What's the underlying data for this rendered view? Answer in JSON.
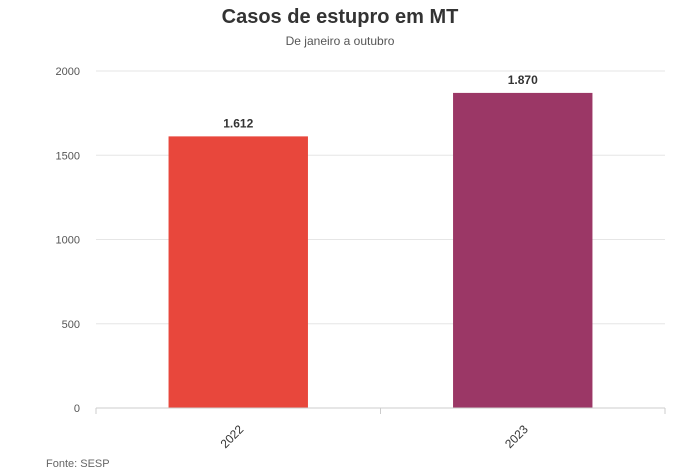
{
  "chart_data": {
    "type": "bar",
    "title": "Casos de estupro em MT",
    "subtitle": "De janeiro a outubro",
    "categories": [
      "2022",
      "2023"
    ],
    "values": [
      1612,
      1870
    ],
    "value_labels": [
      "1.612",
      "1.870"
    ],
    "colors": [
      "#e8473c",
      "#9b3766"
    ],
    "xlabel": "",
    "ylabel": "",
    "ylim": [
      0,
      2000
    ],
    "yticks": [
      0,
      500,
      1000,
      1500,
      2000
    ],
    "grid": true,
    "legend": "none"
  },
  "source": "Fonte: SESP"
}
